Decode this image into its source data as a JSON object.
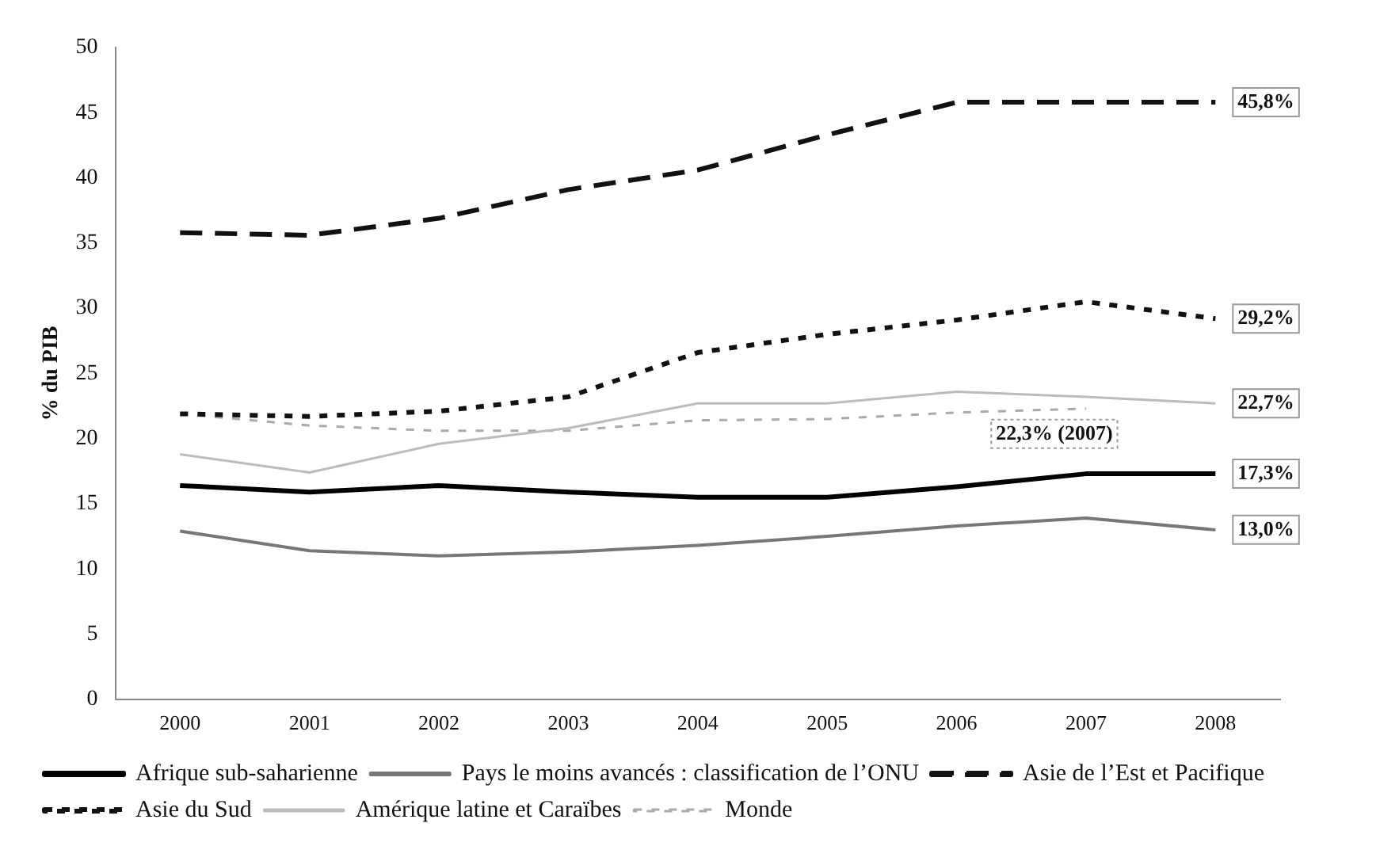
{
  "chart_data": {
    "type": "line",
    "ylabel": "% du PIB",
    "categories": [
      "2000",
      "2001",
      "2002",
      "2003",
      "2004",
      "2005",
      "2006",
      "2007",
      "2008"
    ],
    "series": [
      {
        "name": "Afrique sub-saharienne",
        "color": "#000000",
        "line_style": "solid",
        "values": [
          16.4,
          15.9,
          16.4,
          15.9,
          15.5,
          15.5,
          16.3,
          17.3,
          17.3
        ]
      },
      {
        "name": "Pays le moins avancés : classification de l’ONU",
        "color": "#777777",
        "line_style": "solid",
        "values": [
          12.9,
          11.4,
          11.0,
          11.3,
          11.8,
          12.5,
          13.3,
          13.9,
          13.0
        ]
      },
      {
        "name": "Asie de l’Est et Pacifique",
        "color": "#111111",
        "line_style": "dashed",
        "values": [
          35.8,
          35.6,
          36.9,
          39.1,
          40.6,
          43.3,
          45.8,
          45.8,
          45.8
        ]
      },
      {
        "name": "Asie du Sud",
        "color": "#111111",
        "line_style": "dotted",
        "values": [
          21.9,
          21.7,
          22.1,
          23.2,
          26.6,
          28.0,
          29.1,
          30.5,
          29.2
        ]
      },
      {
        "name": "Amérique latine et Caraïbes",
        "color": "#bbbbbb",
        "line_style": "solid",
        "values": [
          18.8,
          17.4,
          19.6,
          20.8,
          22.7,
          22.7,
          23.6,
          23.2,
          22.7
        ]
      },
      {
        "name": "Monde",
        "color": "#aaaaaa",
        "line_style": "dotted",
        "values": [
          21.9,
          21.0,
          20.6,
          20.6,
          21.4,
          21.5,
          22.0,
          22.3,
          null
        ]
      }
    ],
    "ylim": [
      0,
      50
    ],
    "yticks": [
      0,
      5,
      10,
      15,
      20,
      25,
      30,
      35,
      40,
      45,
      50
    ],
    "grid": false,
    "legend": "bottom",
    "marker": "none",
    "annotations": [
      {
        "text": "45,8%",
        "x": "2008",
        "y": 45.8
      },
      {
        "text": "29,2%",
        "x": "2008",
        "y": 29.2
      },
      {
        "text": "22,7%",
        "x": "2008",
        "y": 22.7
      },
      {
        "text": "22,3% (2007)",
        "x": "2007",
        "y": 22.3
      },
      {
        "text": "17,3%",
        "x": "2008",
        "y": 17.3
      },
      {
        "text": "13,0%",
        "x": "2008",
        "y": 13.0
      }
    ]
  }
}
